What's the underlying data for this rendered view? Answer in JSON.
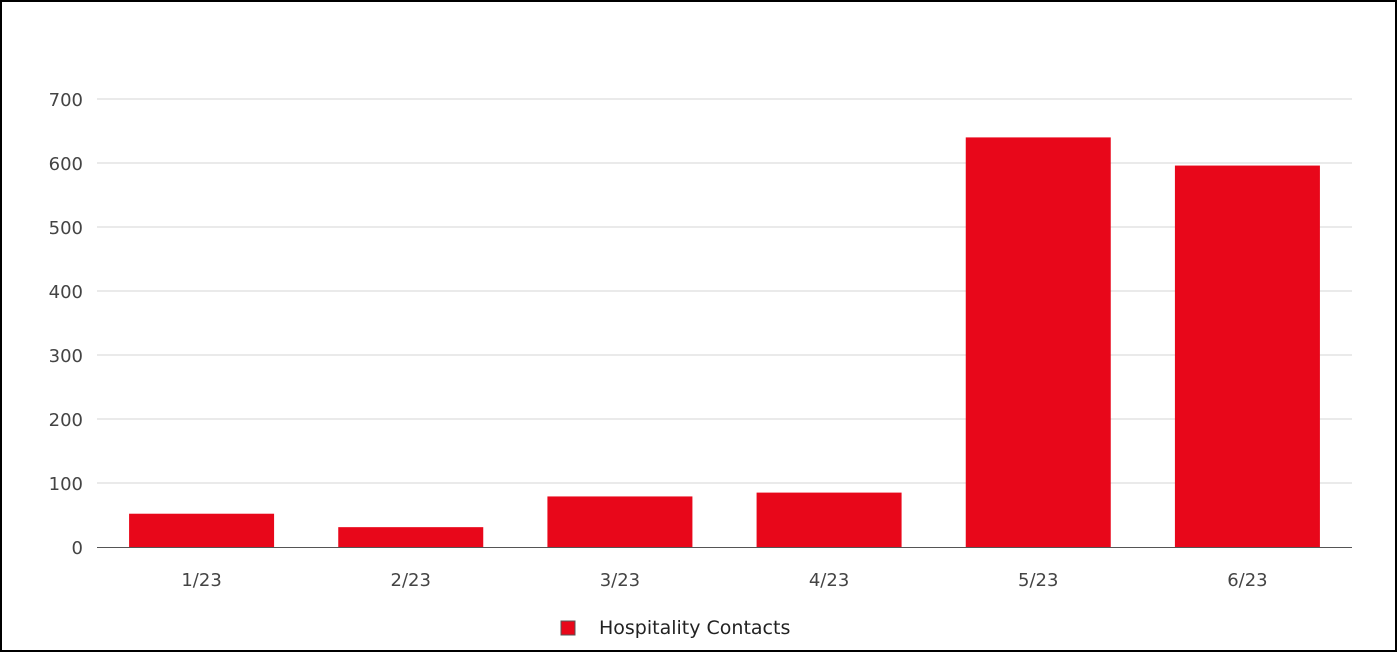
{
  "chart_data": {
    "type": "bar",
    "categories": [
      "1/23",
      "2/23",
      "3/23",
      "4/23",
      "5/23",
      "6/23"
    ],
    "series": [
      {
        "name": "Hospitality Contacts",
        "color": "#e8071a",
        "values": [
          52,
          31,
          79,
          85,
          640,
          596
        ]
      }
    ],
    "y_ticks": [
      0,
      100,
      200,
      300,
      400,
      500,
      600,
      700
    ],
    "ylim": [
      0,
      700
    ],
    "title": "",
    "xlabel": "",
    "ylabel": "",
    "grid": true,
    "legend_position": "bottom-center"
  }
}
